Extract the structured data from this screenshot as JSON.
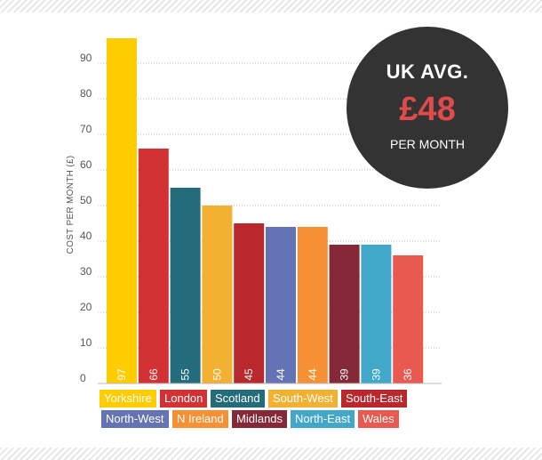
{
  "chart_data": {
    "type": "bar",
    "ylabel": "COST PER MONTH (£)",
    "xlabel": "",
    "ylim": [
      0,
      100
    ],
    "yticks": [
      "0",
      "10",
      "20",
      "30",
      "40",
      "50",
      "60",
      "70",
      "80",
      "90"
    ],
    "grid": true,
    "categories": [
      "Yorkshire",
      "London",
      "Scotland",
      "South-West",
      "South-East",
      "North-West",
      "N Ireland",
      "Midlands",
      "North-East",
      "Wales"
    ],
    "values": [
      97,
      66,
      55,
      50,
      45,
      44,
      44,
      39,
      39,
      36
    ],
    "value_labels": [
      "97",
      "66",
      "55",
      "50",
      "45",
      "44",
      "44",
      "39",
      "39",
      "36"
    ],
    "colors": [
      "#ffcc00",
      "#d23234",
      "#246b7b",
      "#f2b133",
      "#b8282d",
      "#6473b3",
      "#f59134",
      "#852838",
      "#41a8c9",
      "#e85a4f"
    ],
    "legend_position": "bottom"
  },
  "uk_average": {
    "title": "UK AVG.",
    "value": "£48",
    "subtitle": "PER MONTH"
  }
}
